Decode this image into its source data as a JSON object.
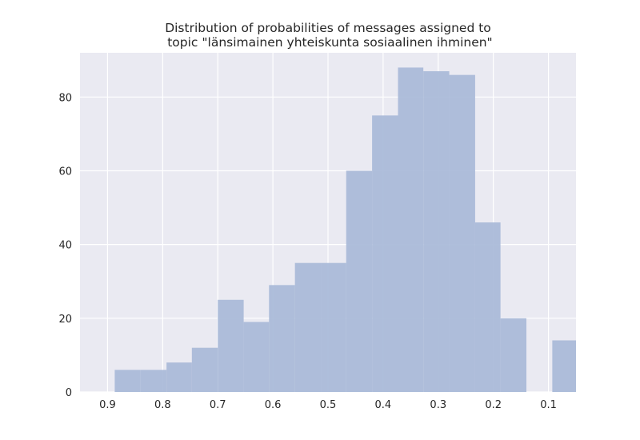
{
  "chart_data": {
    "type": "bar",
    "title": "Distribution of probabilities of messages assigned to\n topic \"länsimainen yhteiskunta sosiaalinen ihminen\"",
    "title_lines": [
      "Distribution of probabilities of messages assigned to",
      " topic \"länsimainen yhteiskunta sosiaalinen ihminen\""
    ],
    "xlabel": "",
    "ylabel": "",
    "x_axis_inverted": true,
    "xlim": [
      0.95,
      0.05
    ],
    "ylim": [
      0,
      92
    ],
    "xticks": [
      0.9,
      0.8,
      0.7,
      0.6,
      0.5,
      0.4,
      0.3,
      0.2,
      0.1
    ],
    "xtick_labels": [
      "0.9",
      "0.8",
      "0.7",
      "0.6",
      "0.5",
      "0.4",
      "0.3",
      "0.2",
      "0.1"
    ],
    "yticks": [
      0,
      20,
      40,
      60,
      80
    ],
    "ytick_labels": [
      "0",
      "20",
      "40",
      "60",
      "80"
    ],
    "grid": true,
    "colors": {
      "background": "#eaeaf2",
      "grid": "#ffffff",
      "bar": "#a8b8d8",
      "text": "#262626"
    },
    "bins": [
      {
        "x_start": 0.887,
        "x_end": 0.84,
        "value": 6
      },
      {
        "x_start": 0.84,
        "x_end": 0.793,
        "value": 6
      },
      {
        "x_start": 0.793,
        "x_end": 0.747,
        "value": 8
      },
      {
        "x_start": 0.747,
        "x_end": 0.7,
        "value": 12
      },
      {
        "x_start": 0.7,
        "x_end": 0.653,
        "value": 25
      },
      {
        "x_start": 0.653,
        "x_end": 0.607,
        "value": 19
      },
      {
        "x_start": 0.607,
        "x_end": 0.56,
        "value": 29
      },
      {
        "x_start": 0.56,
        "x_end": 0.513,
        "value": 35
      },
      {
        "x_start": 0.513,
        "x_end": 0.467,
        "value": 35
      },
      {
        "x_start": 0.467,
        "x_end": 0.42,
        "value": 60
      },
      {
        "x_start": 0.42,
        "x_end": 0.373,
        "value": 75
      },
      {
        "x_start": 0.373,
        "x_end": 0.327,
        "value": 88
      },
      {
        "x_start": 0.327,
        "x_end": 0.28,
        "value": 87
      },
      {
        "x_start": 0.28,
        "x_end": 0.233,
        "value": 86
      },
      {
        "x_start": 0.233,
        "x_end": 0.187,
        "value": 46
      },
      {
        "x_start": 0.187,
        "x_end": 0.14,
        "value": 20
      },
      {
        "x_start": 0.14,
        "x_end": 0.093,
        "value": 0
      },
      {
        "x_start": 0.093,
        "x_end": 0.046,
        "value": 14
      }
    ]
  }
}
